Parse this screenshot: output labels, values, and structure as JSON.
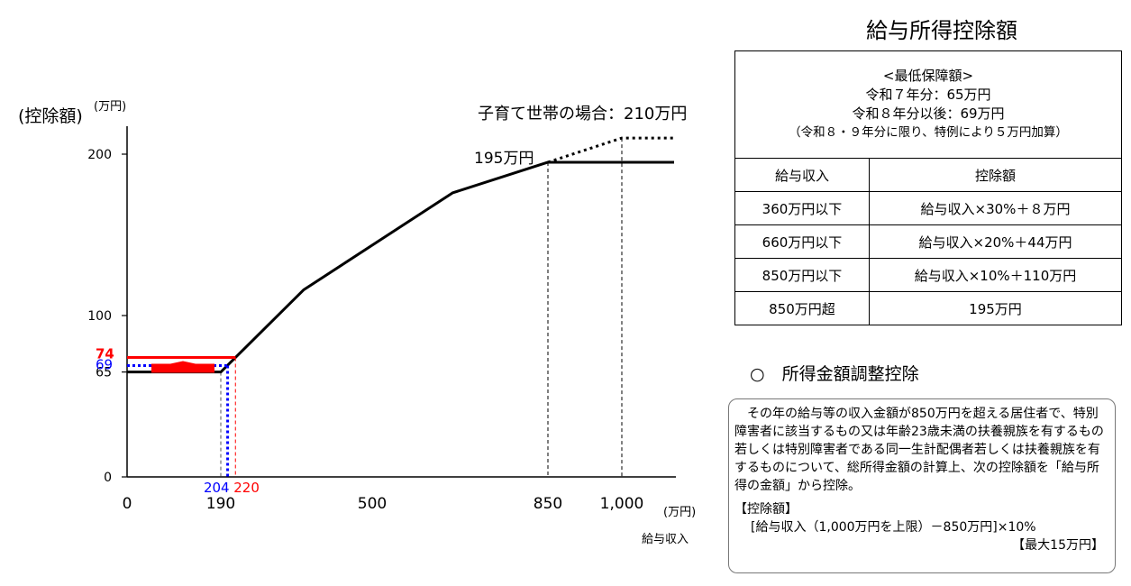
{
  "chart_data": {
    "type": "line",
    "ylabel": "(控除額)",
    "ylabel_unit": "(万円)",
    "xlabel": "給与収入",
    "xlabel_unit": "(万円)",
    "xlim": [
      0,
      1100
    ],
    "ylim": [
      0,
      215
    ],
    "x_ticks": [
      "0",
      "190",
      "500",
      "850",
      "1,000"
    ],
    "x_tick_values": [
      0,
      190,
      500,
      850,
      1000
    ],
    "y_ticks": [
      "0",
      "65",
      "100",
      "200"
    ],
    "y_tick_values": [
      0,
      65,
      100,
      200
    ],
    "series": [
      {
        "values": [
          [
            0,
            65
          ],
          [
            190,
            65
          ],
          [
            360,
            116
          ],
          [
            660,
            176
          ],
          [
            850,
            195
          ],
          [
            1100,
            195
          ]
        ]
      },
      {
        "values": [
          [
            850,
            195
          ],
          [
            1000,
            210
          ],
          [
            1100,
            210
          ]
        ]
      }
    ],
    "levels": [
      {
        "label": "74",
        "x_label": "220",
        "y": 74,
        "x_end": 220,
        "color": "#ff0000"
      },
      {
        "label": "69",
        "x_label": "204",
        "y": 69,
        "x_end": 204,
        "color": "#0000ff"
      }
    ],
    "annotations": {
      "point_195": "195万円",
      "childcare": "子育て世帯の場合：210万円"
    }
  },
  "table": {
    "title": "給与所得控除額",
    "minimum_title": "<最低保障額>",
    "minimum_r7": "令和７年分：65万円",
    "minimum_r8": "令和８年分以後：69万円",
    "minimum_note": "（令和８・９年分に限り、特例により５万円加算）",
    "header_income": "給与収入",
    "header_deduction": "控除額",
    "rows": [
      {
        "income": "360万円以下",
        "deduction": "給与収入×30%＋８万円"
      },
      {
        "income": "660万円以下",
        "deduction": "給与収入×20%＋44万円"
      },
      {
        "income": "850万円以下",
        "deduction": "給与収入×10%＋110万円"
      },
      {
        "income": "850万円超",
        "deduction": "195万円"
      }
    ]
  },
  "adjustment": {
    "heading": "○　所得金額調整控除",
    "description": "その年の給与等の収入金額が850万円を超える居住者で、特別障害者に該当するもの又は年齢23歳未満の扶養親族を有するもの若しくは特別障害者である同一生計配偶者若しくは扶養親族を有するものについて、総所得金額の計算上、次の控除額を「給与所得の金額」から控除。",
    "formula_label": "【控除額】",
    "formula": "[給与収入（1,000万円を上限）－850万円]×10%",
    "max": "【最大15万円】"
  },
  "colors": {
    "main": "#000000",
    "red": "#ff0000",
    "blue": "#0000ff"
  }
}
